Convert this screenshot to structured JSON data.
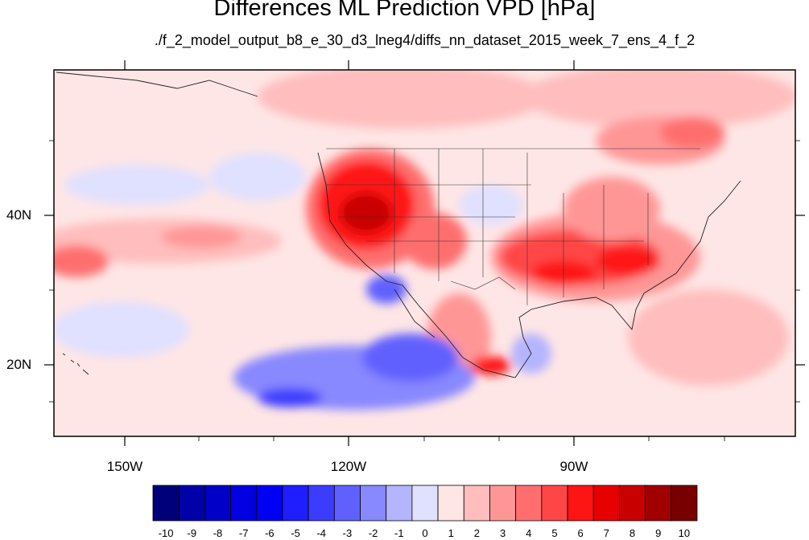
{
  "title": "Differences ML Prediction VPD [hPa]",
  "subtitle": "./f_2_model_output_b8_e_30_d3_lneg4/diffs_nn_dataset_2015_week_7_ens_4_f_2",
  "map": {
    "lat_ticks": [
      "40N",
      "20N"
    ],
    "lon_ticks": [
      "150W",
      "120W",
      "90W"
    ]
  },
  "colorbar": {
    "labels": [
      "-10",
      "-9",
      "-8",
      "-7",
      "-6",
      "-5",
      "-4",
      "-3",
      "-2",
      "-1",
      "0",
      "1",
      "2",
      "3",
      "4",
      "5",
      "6",
      "7",
      "8",
      "9",
      "10"
    ],
    "colors": [
      "#00007a",
      "#0000a8",
      "#0000c8",
      "#0000e0",
      "#0000f5",
      "#1e1eff",
      "#3c3cff",
      "#6060ff",
      "#8888ff",
      "#b4b4ff",
      "#e0e0ff",
      "#ffe6e6",
      "#ffbdbd",
      "#ff9696",
      "#ff6e6e",
      "#ff4646",
      "#ff1414",
      "#e60000",
      "#c80000",
      "#a00000",
      "#780000"
    ]
  }
}
